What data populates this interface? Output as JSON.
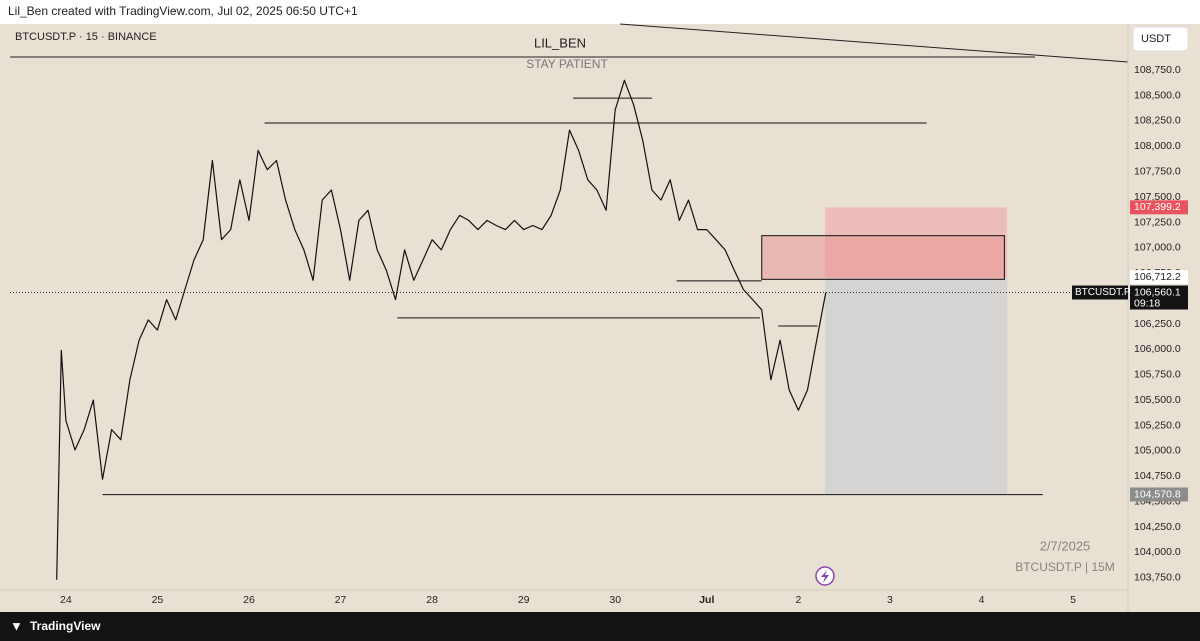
{
  "header": "Lil_Ben created with TradingView.com, Jul 02, 2025 06:50 UTC+1",
  "symbol": "BTCUSDT.P · 15 · BINANCE",
  "currency": "USDT",
  "footer": "TradingView",
  "watermark": {
    "date": "2/7/2025",
    "symbol": "BTCUSDT.P | 15M"
  },
  "chart_data": {
    "type": "line",
    "title": "LIL_BEN",
    "subtitle": "STAY PATIENT",
    "color": "#111111",
    "xlim": [
      -0.61,
      11.6
    ],
    "ylim": [
      103630,
      108870
    ],
    "xticks": [
      {
        "value": 0,
        "label": "24"
      },
      {
        "value": 1,
        "label": "25"
      },
      {
        "value": 2,
        "label": "26"
      },
      {
        "value": 3,
        "label": "27"
      },
      {
        "value": 4,
        "label": "28"
      },
      {
        "value": 5,
        "label": "29"
      },
      {
        "value": 6,
        "label": "30"
      },
      {
        "value": 7,
        "label": "Jul"
      },
      {
        "value": 8,
        "label": "2"
      },
      {
        "value": 9,
        "label": "3"
      },
      {
        "value": 10,
        "label": "4"
      },
      {
        "value": 11,
        "label": "5"
      }
    ],
    "yticks": [
      {
        "value": 103750,
        "label": "103,750.0"
      },
      {
        "value": 104000,
        "label": "104,000.0"
      },
      {
        "value": 104250,
        "label": "104,250.0"
      },
      {
        "value": 104500,
        "label": "104,500.0"
      },
      {
        "value": 104750,
        "label": "104,750.0"
      },
      {
        "value": 105000,
        "label": "105,000.0"
      },
      {
        "value": 105250,
        "label": "105,250.0"
      },
      {
        "value": 105500,
        "label": "105,500.0"
      },
      {
        "value": 105750,
        "label": "105,750.0"
      },
      {
        "value": 106000,
        "label": "106,000.0"
      },
      {
        "value": 106250,
        "label": "106,250.0"
      },
      {
        "value": 106500,
        "label": "106,500.0"
      },
      {
        "value": 106750,
        "label": "106,750.0"
      },
      {
        "value": 107000,
        "label": "107,000.0"
      },
      {
        "value": 107250,
        "label": "107,250.0"
      },
      {
        "value": 107500,
        "label": "107,500.0"
      },
      {
        "value": 107750,
        "label": "107,750.0"
      },
      {
        "value": 108000,
        "label": "108,000.0"
      },
      {
        "value": 108250,
        "label": "108,250.0"
      },
      {
        "value": 108500,
        "label": "108,500.0"
      },
      {
        "value": 108750,
        "label": "108,750.0"
      }
    ],
    "x": [
      -0.1,
      -0.05,
      0,
      0.1,
      0.2,
      0.3,
      0.4,
      0.5,
      0.6,
      0.7,
      0.8,
      0.9,
      1.0,
      1.1,
      1.2,
      1.3,
      1.4,
      1.5,
      1.6,
      1.7,
      1.8,
      1.9,
      2.0,
      2.1,
      2.2,
      2.3,
      2.4,
      2.5,
      2.6,
      2.7,
      2.8,
      2.9,
      3.0,
      3.1,
      3.2,
      3.3,
      3.4,
      3.5,
      3.6,
      3.7,
      3.8,
      3.9,
      4.0,
      4.1,
      4.2,
      4.3,
      4.4,
      4.5,
      4.6,
      4.7,
      4.8,
      4.9,
      5.0,
      5.1,
      5.2,
      5.3,
      5.4,
      5.5,
      5.6,
      5.7,
      5.8,
      5.9,
      6.0,
      6.1,
      6.2,
      6.3,
      6.4,
      6.5,
      6.6,
      6.7,
      6.8,
      6.9,
      7.0,
      7.1,
      7.2,
      7.3,
      7.4,
      7.5,
      7.6,
      7.7,
      7.8,
      7.9,
      8.0,
      8.1,
      8.2,
      8.3
    ],
    "values": [
      103730,
      105990,
      105300,
      105010,
      105210,
      105500,
      104720,
      105210,
      105110,
      105700,
      106090,
      106290,
      106190,
      106490,
      106290,
      106590,
      106880,
      107080,
      107860,
      107080,
      107180,
      107670,
      107270,
      107960,
      107770,
      107860,
      107470,
      107180,
      106980,
      106680,
      107470,
      107570,
      107180,
      106680,
      107270,
      107370,
      106980,
      106780,
      106490,
      106980,
      106680,
      106880,
      107080,
      106980,
      107180,
      107320,
      107270,
      107180,
      107270,
      107220,
      107180,
      107270,
      107180,
      107220,
      107180,
      107320,
      107570,
      108160,
      107960,
      107670,
      107570,
      107370,
      108360,
      108650,
      108410,
      108060,
      107570,
      107470,
      107670,
      107270,
      107470,
      107180,
      107180,
      107080,
      106980,
      106780,
      106590,
      106490,
      106390,
      105700,
      106090,
      105600,
      105400,
      105600,
      106090,
      106560
    ],
    "levels": [
      {
        "value": 108475,
        "x": [
          5.54,
          6.4
        ]
      },
      {
        "value": 108230,
        "x": [
          2.17,
          9.4
        ]
      },
      {
        "value": 106675,
        "x": [
          6.67,
          7.6
        ]
      },
      {
        "value": 106310,
        "x": [
          3.62,
          7.58
        ]
      },
      {
        "value": 106230,
        "x": [
          7.78,
          8.21
        ]
      },
      {
        "value": 104570,
        "x": [
          0.4,
          10.67
        ]
      }
    ],
    "zone": {
      "top": 107120,
      "bottom": 106690,
      "x": [
        7.6,
        10.25
      ]
    },
    "position": {
      "x": [
        8.29,
        10.28
      ],
      "stop": {
        "value": 107399.2,
        "label": "107,399.2"
      },
      "entry": {
        "value": 106712.2,
        "label": "106,712.2"
      },
      "target": {
        "value": 104570.8,
        "label": "104,570.8"
      }
    },
    "current": {
      "name": "BTCUSDT.P",
      "value": 106560.1,
      "label": "106,560.1",
      "countdown": "09:18"
    }
  }
}
